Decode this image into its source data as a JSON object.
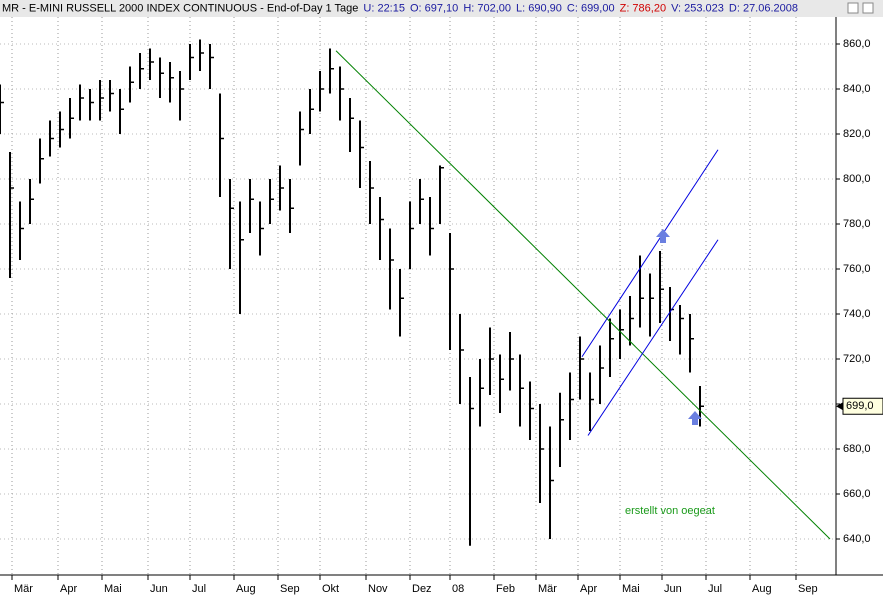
{
  "header": [
    {
      "text": "MR - E-MINI RUSSELL 2000 INDEX CONTINUOUS - End-of-Day 1 Tage",
      "color": "#000000"
    },
    {
      "text": "U: 22:15",
      "color": "#1a1aa0"
    },
    {
      "text": "O: 697,10",
      "color": "#1a1aa0"
    },
    {
      "text": "H: 702,00",
      "color": "#1a1aa0"
    },
    {
      "text": "L: 690,90",
      "color": "#1a1aa0"
    },
    {
      "text": "C: 699,00",
      "color": "#1a1aa0"
    },
    {
      "text": "Z: 786,20",
      "color": "#d00000"
    },
    {
      "text": "V: 253.023",
      "color": "#1a1aa0"
    },
    {
      "text": "D: 27.06.2008",
      "color": "#1a1aa0"
    }
  ],
  "chart_data": {
    "type": "ohlc",
    "color": "#000000",
    "grid": true,
    "x": [
      0,
      5,
      10,
      15,
      20,
      25,
      30,
      35,
      40,
      45,
      50,
      55,
      60,
      65,
      70,
      75,
      80,
      85,
      90,
      95,
      100,
      105,
      110,
      115,
      120,
      125,
      130,
      135,
      140,
      145,
      150,
      155,
      160,
      165,
      170,
      175,
      180,
      185,
      190,
      195,
      200,
      205,
      210,
      215,
      220,
      225,
      230,
      235,
      240,
      245,
      250,
      255,
      260,
      265,
      270,
      275,
      280,
      285,
      290,
      295,
      300,
      305,
      310,
      315,
      320,
      325,
      330,
      335,
      340,
      345,
      350
    ],
    "highs": [
      842,
      812,
      790,
      800,
      818,
      826,
      830,
      836,
      842,
      840,
      844,
      844,
      840,
      850,
      856,
      858,
      854,
      852,
      848,
      860,
      862,
      860,
      838,
      800,
      790,
      800,
      790,
      800,
      806,
      800,
      830,
      840,
      848,
      858,
      850,
      836,
      826,
      808,
      792,
      778,
      760,
      790,
      800,
      792,
      806,
      776,
      740,
      712,
      720,
      734,
      722,
      732,
      722,
      710,
      700,
      690,
      705,
      714,
      730,
      714,
      726,
      738,
      742,
      748,
      766,
      758,
      768,
      752,
      744,
      740,
      708
    ],
    "lows": [
      820,
      756,
      764,
      780,
      798,
      810,
      814,
      818,
      826,
      826,
      826,
      830,
      820,
      834,
      840,
      844,
      836,
      834,
      826,
      844,
      848,
      840,
      792,
      760,
      740,
      776,
      766,
      780,
      786,
      776,
      806,
      820,
      830,
      838,
      826,
      812,
      796,
      780,
      764,
      742,
      730,
      760,
      780,
      766,
      780,
      724,
      700,
      637,
      690,
      704,
      696,
      706,
      690,
      684,
      656,
      640,
      672,
      684,
      702,
      688,
      700,
      712,
      720,
      726,
      734,
      730,
      736,
      728,
      722,
      714,
      690
    ],
    "closes": [
      834,
      796,
      778,
      791,
      809,
      818,
      822,
      827,
      836,
      834,
      836,
      838,
      831,
      843,
      849,
      852,
      847,
      845,
      840,
      854,
      856,
      854,
      818,
      787,
      773,
      791,
      778,
      791,
      796,
      787,
      822,
      831,
      840,
      849,
      840,
      827,
      814,
      796,
      782,
      764,
      747,
      778,
      791,
      778,
      805,
      760,
      724,
      698,
      707,
      720,
      711,
      720,
      707,
      698,
      680,
      666,
      693,
      702,
      720,
      702,
      716,
      729,
      733,
      738,
      747,
      747,
      751,
      742,
      738,
      729,
      699
    ],
    "xlim": [
      0,
      418
    ],
    "xticks": [
      {
        "value": 6,
        "label": "Mär"
      },
      {
        "value": 29,
        "label": "Apr"
      },
      {
        "value": 51,
        "label": "Mai"
      },
      {
        "value": 74,
        "label": "Jun"
      },
      {
        "value": 95,
        "label": "Jul"
      },
      {
        "value": 117,
        "label": "Aug"
      },
      {
        "value": 139,
        "label": "Sep"
      },
      {
        "value": 160,
        "label": "Okt"
      },
      {
        "value": 183,
        "label": "Nov"
      },
      {
        "value": 205,
        "label": "Dez"
      },
      {
        "value": 225,
        "label": "08"
      },
      {
        "value": 247,
        "label": "Feb"
      },
      {
        "value": 268,
        "label": "Mär"
      },
      {
        "value": 289,
        "label": "Apr"
      },
      {
        "value": 310,
        "label": "Mai"
      },
      {
        "value": 331,
        "label": "Jun"
      },
      {
        "value": 353,
        "label": "Jul"
      },
      {
        "value": 375,
        "label": "Aug"
      },
      {
        "value": 398,
        "label": "Sep"
      }
    ],
    "ylim": [
      624,
      872
    ],
    "yticks": [
      {
        "value": 640,
        "label": "640,0"
      },
      {
        "value": 660,
        "label": "660,0"
      },
      {
        "value": 680,
        "label": "680,0"
      },
      {
        "value": 700,
        "label": "700,0"
      },
      {
        "value": 720,
        "label": "720,0"
      },
      {
        "value": 740,
        "label": "740,0"
      },
      {
        "value": 760,
        "label": "760,0"
      },
      {
        "value": 780,
        "label": "780,0"
      },
      {
        "value": 800,
        "label": "800,0"
      },
      {
        "value": 820,
        "label": "820,0"
      },
      {
        "value": 840,
        "label": "840,0"
      },
      {
        "value": 860,
        "label": "860,0"
      }
    ],
    "last": {
      "value": 699,
      "label": "699,0"
    },
    "trendlines": [
      {
        "color": "#008000",
        "points": [
          [
            168,
            857
          ],
          [
            415,
            640
          ]
        ]
      },
      {
        "color": "#0000e0",
        "points": [
          [
            291,
            721
          ],
          [
            359,
            813
          ]
        ]
      },
      {
        "color": "#0000e0",
        "points": [
          [
            294,
            686
          ],
          [
            359,
            773
          ]
        ]
      }
    ],
    "annotation": {
      "text": "erstellt von oegeat",
      "color": "#1a9a1a"
    }
  }
}
